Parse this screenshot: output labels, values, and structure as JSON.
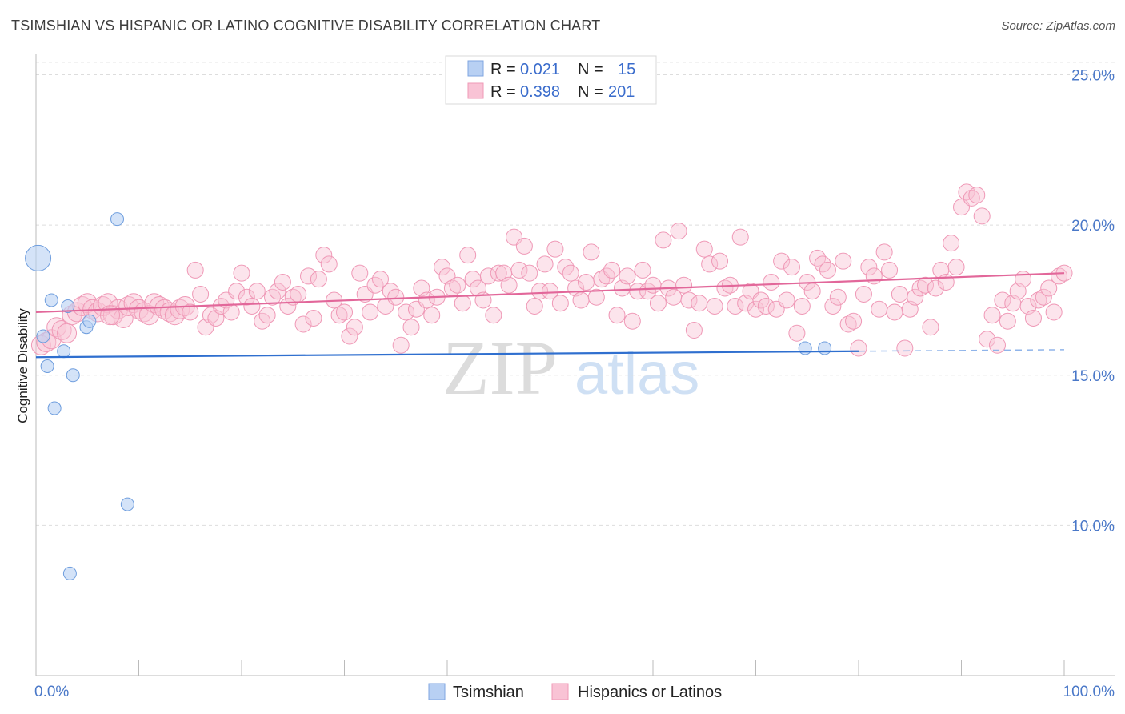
{
  "title": "TSIMSHIAN VS HISPANIC OR LATINO COGNITIVE DISABILITY CORRELATION CHART",
  "source": "Source: ZipAtlas.com",
  "watermark": {
    "zip": "ZIP",
    "atlas": "atlas"
  },
  "colors": {
    "blue": "#8fb4ea",
    "blue_line": "#2f6fcf",
    "pink": "#f4a6c0",
    "pink_line": "#e2679a",
    "tick": "#4a78c8"
  },
  "legend": {
    "r_label": "R =",
    "n_label": "N =",
    "rows": [
      {
        "r": "0.021",
        "n": "15"
      },
      {
        "r": "0.398",
        "n": "201"
      }
    ]
  },
  "bottom_legend": [
    "Tsimshian",
    "Hispanics or Latinos"
  ],
  "chart_data": {
    "type": "scatter",
    "title": "TSIMSHIAN VS HISPANIC OR LATINO COGNITIVE DISABILITY CORRELATION CHART",
    "xlabel": "",
    "ylabel": "Cognitive Disability",
    "xlim": [
      0,
      100
    ],
    "ylim": [
      5,
      26
    ],
    "x_tick_labels": [
      "0.0%",
      "100.0%"
    ],
    "y_ticks": [
      10,
      15,
      20,
      25
    ],
    "y_tick_labels": [
      "10.0%",
      "15.0%",
      "20.0%",
      "25.0%"
    ],
    "grid": true,
    "series": [
      {
        "name": "Tsimshian",
        "points": [
          [
            0.2,
            18.9
          ],
          [
            0.7,
            16.3
          ],
          [
            1.1,
            15.3
          ],
          [
            1.5,
            17.5
          ],
          [
            1.8,
            13.9
          ],
          [
            2.7,
            15.8
          ],
          [
            3.1,
            17.3
          ],
          [
            3.3,
            8.4
          ],
          [
            3.6,
            15.0
          ],
          [
            4.9,
            16.6
          ],
          [
            5.2,
            16.8
          ],
          [
            7.9,
            20.2
          ],
          [
            8.9,
            10.7
          ],
          [
            74.8,
            15.9
          ],
          [
            76.7,
            15.9
          ]
        ],
        "trend": {
          "x": [
            0,
            80
          ],
          "y": [
            15.6,
            15.8
          ],
          "dashed_to": 100
        }
      },
      {
        "name": "Hispanics or Latinos",
        "points": [
          [
            0.5,
            16.0
          ],
          [
            1.0,
            16.1
          ],
          [
            1.5,
            16.2
          ],
          [
            2.0,
            16.6
          ],
          [
            2.5,
            16.5
          ],
          [
            3.0,
            16.4
          ],
          [
            3.5,
            17.0
          ],
          [
            4.0,
            17.1
          ],
          [
            4.5,
            17.3
          ],
          [
            5.0,
            17.4
          ],
          [
            5.5,
            17.2
          ],
          [
            6.0,
            17.1
          ],
          [
            6.5,
            17.3
          ],
          [
            7.0,
            17.4
          ],
          [
            7.5,
            17.0
          ],
          [
            8.0,
            17.2
          ],
          [
            8.5,
            16.9
          ],
          [
            9.0,
            17.3
          ],
          [
            9.5,
            17.4
          ],
          [
            10.0,
            17.2
          ],
          [
            10.5,
            17.1
          ],
          [
            11.0,
            17.0
          ],
          [
            11.5,
            17.4
          ],
          [
            12.0,
            17.3
          ],
          [
            12.5,
            17.2
          ],
          [
            13.0,
            17.1
          ],
          [
            13.5,
            17.0
          ],
          [
            14.0,
            17.2
          ],
          [
            14.5,
            17.3
          ],
          [
            15.0,
            17.1
          ],
          [
            15.5,
            18.5
          ],
          [
            16.0,
            17.7
          ],
          [
            16.5,
            16.6
          ],
          [
            17.0,
            17.0
          ],
          [
            17.5,
            16.9
          ],
          [
            18.0,
            17.3
          ],
          [
            18.5,
            17.5
          ],
          [
            19.0,
            17.1
          ],
          [
            19.5,
            17.8
          ],
          [
            20.0,
            18.4
          ],
          [
            20.5,
            17.6
          ],
          [
            21.0,
            17.3
          ],
          [
            21.5,
            17.8
          ],
          [
            22.0,
            16.8
          ],
          [
            22.5,
            17.0
          ],
          [
            23.0,
            17.6
          ],
          [
            23.5,
            17.8
          ],
          [
            24.0,
            18.1
          ],
          [
            24.5,
            17.3
          ],
          [
            25.0,
            17.6
          ],
          [
            25.5,
            17.7
          ],
          [
            26.0,
            16.7
          ],
          [
            26.5,
            18.3
          ],
          [
            27.0,
            16.9
          ],
          [
            27.5,
            18.2
          ],
          [
            28.0,
            19.0
          ],
          [
            28.5,
            18.7
          ],
          [
            29.0,
            17.5
          ],
          [
            29.5,
            17.0
          ],
          [
            30.0,
            17.1
          ],
          [
            30.5,
            16.3
          ],
          [
            31.0,
            16.6
          ],
          [
            31.5,
            18.4
          ],
          [
            32.0,
            17.7
          ],
          [
            32.5,
            17.1
          ],
          [
            33.0,
            18.0
          ],
          [
            33.5,
            18.2
          ],
          [
            34.0,
            17.3
          ],
          [
            34.5,
            17.8
          ],
          [
            35.0,
            17.6
          ],
          [
            35.5,
            16.0
          ],
          [
            36.0,
            17.1
          ],
          [
            36.5,
            16.6
          ],
          [
            37.0,
            17.2
          ],
          [
            37.5,
            17.9
          ],
          [
            38.0,
            17.5
          ],
          [
            38.5,
            17.0
          ],
          [
            39.0,
            17.6
          ],
          [
            39.5,
            18.6
          ],
          [
            40.0,
            18.3
          ],
          [
            40.5,
            17.9
          ],
          [
            41.0,
            18.0
          ],
          [
            41.5,
            17.4
          ],
          [
            42.0,
            19.0
          ],
          [
            42.5,
            18.2
          ],
          [
            43.0,
            17.9
          ],
          [
            43.5,
            17.5
          ],
          [
            44.0,
            18.3
          ],
          [
            44.5,
            17.0
          ],
          [
            45.0,
            18.4
          ],
          [
            45.5,
            18.4
          ],
          [
            46.0,
            18.0
          ],
          [
            46.5,
            19.6
          ],
          [
            47.0,
            18.5
          ],
          [
            47.5,
            19.3
          ],
          [
            48.0,
            18.4
          ],
          [
            48.5,
            17.3
          ],
          [
            49.0,
            17.8
          ],
          [
            49.5,
            18.7
          ],
          [
            50.0,
            17.8
          ],
          [
            50.5,
            19.2
          ],
          [
            51.0,
            17.4
          ],
          [
            51.5,
            18.6
          ],
          [
            52.0,
            18.4
          ],
          [
            52.5,
            17.9
          ],
          [
            53.0,
            17.5
          ],
          [
            53.5,
            18.1
          ],
          [
            54.0,
            19.1
          ],
          [
            54.5,
            17.6
          ],
          [
            55.0,
            18.2
          ],
          [
            55.5,
            18.3
          ],
          [
            56.0,
            18.5
          ],
          [
            56.5,
            17.0
          ],
          [
            57.0,
            17.9
          ],
          [
            57.5,
            18.3
          ],
          [
            58.0,
            16.8
          ],
          [
            58.5,
            17.8
          ],
          [
            59.0,
            18.5
          ],
          [
            59.5,
            17.8
          ],
          [
            60.0,
            18.0
          ],
          [
            60.5,
            17.4
          ],
          [
            61.0,
            19.5
          ],
          [
            61.5,
            17.9
          ],
          [
            62.0,
            17.6
          ],
          [
            62.5,
            19.8
          ],
          [
            63.0,
            18.0
          ],
          [
            63.5,
            17.5
          ],
          [
            64.0,
            16.5
          ],
          [
            64.5,
            17.4
          ],
          [
            65.0,
            19.2
          ],
          [
            65.5,
            18.7
          ],
          [
            66.0,
            17.3
          ],
          [
            66.5,
            18.8
          ],
          [
            67.0,
            17.9
          ],
          [
            67.5,
            18.0
          ],
          [
            68.0,
            17.3
          ],
          [
            68.5,
            19.6
          ],
          [
            69.0,
            17.4
          ],
          [
            69.5,
            17.8
          ],
          [
            70.0,
            17.2
          ],
          [
            70.5,
            17.5
          ],
          [
            71.0,
            17.3
          ],
          [
            71.5,
            18.1
          ],
          [
            72.0,
            17.2
          ],
          [
            72.5,
            18.8
          ],
          [
            73.0,
            17.5
          ],
          [
            73.5,
            18.6
          ],
          [
            74.0,
            16.4
          ],
          [
            74.5,
            17.3
          ],
          [
            75.0,
            18.1
          ],
          [
            75.5,
            17.8
          ],
          [
            76.0,
            18.9
          ],
          [
            76.5,
            18.7
          ],
          [
            77.0,
            18.5
          ],
          [
            77.5,
            17.3
          ],
          [
            78.0,
            17.6
          ],
          [
            78.5,
            18.8
          ],
          [
            79.0,
            16.7
          ],
          [
            79.5,
            16.8
          ],
          [
            80.0,
            15.9
          ],
          [
            80.5,
            17.7
          ],
          [
            81.0,
            18.6
          ],
          [
            81.5,
            18.3
          ],
          [
            82.0,
            17.2
          ],
          [
            82.5,
            19.1
          ],
          [
            83.0,
            18.5
          ],
          [
            83.5,
            17.1
          ],
          [
            84.0,
            17.7
          ],
          [
            84.5,
            15.9
          ],
          [
            85.0,
            17.2
          ],
          [
            85.5,
            17.6
          ],
          [
            86.0,
            17.9
          ],
          [
            86.5,
            18.0
          ],
          [
            87.0,
            16.6
          ],
          [
            87.5,
            17.9
          ],
          [
            88.0,
            18.5
          ],
          [
            88.5,
            18.1
          ],
          [
            89.0,
            19.4
          ],
          [
            89.5,
            18.6
          ],
          [
            90.0,
            20.6
          ],
          [
            90.5,
            21.1
          ],
          [
            91.0,
            20.9
          ],
          [
            91.5,
            21.0
          ],
          [
            92.0,
            20.3
          ],
          [
            92.5,
            16.2
          ],
          [
            93.0,
            17.0
          ],
          [
            93.5,
            16.0
          ],
          [
            94.0,
            17.5
          ],
          [
            94.5,
            16.8
          ],
          [
            95.0,
            17.4
          ],
          [
            95.5,
            17.8
          ],
          [
            96.0,
            18.2
          ],
          [
            96.5,
            17.3
          ],
          [
            97.0,
            16.9
          ],
          [
            97.5,
            17.5
          ],
          [
            98.0,
            17.6
          ],
          [
            98.5,
            17.9
          ],
          [
            99.0,
            17.1
          ],
          [
            99.5,
            18.3
          ],
          [
            100.0,
            18.4
          ],
          [
            7.2,
            17.0
          ]
        ],
        "trend": {
          "x": [
            0,
            100
          ],
          "y": [
            17.1,
            18.4
          ]
        }
      }
    ]
  }
}
